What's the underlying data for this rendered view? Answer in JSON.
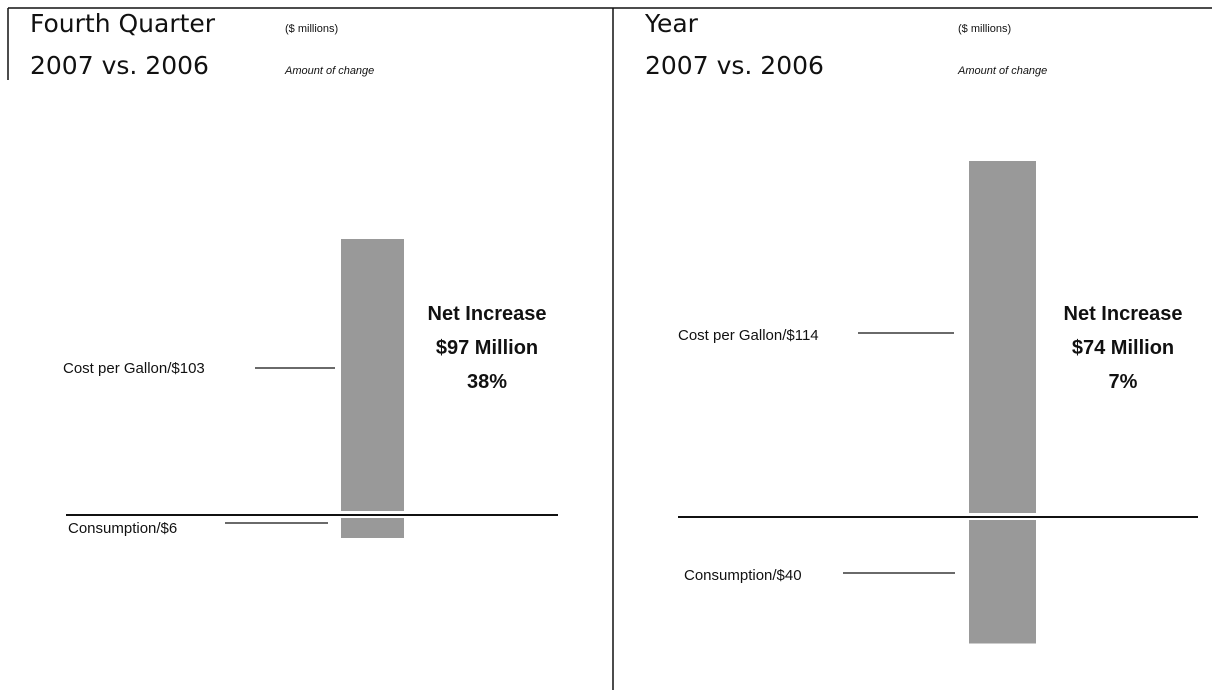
{
  "chart_data": [
    {
      "type": "bar",
      "title_line1": "Fourth Quarter",
      "title_line2": "2007 vs. 2006",
      "units": "($ millions)",
      "subtitle": "Amount of change",
      "categories": [
        "Cost per Gallon",
        "Consumption"
      ],
      "labels": [
        "Cost per Gallon/$103",
        "Consumption/$6"
      ],
      "values": [
        103,
        -6
      ],
      "net": {
        "line1": "Net Increase",
        "line2": "$97 Million",
        "line3": "38%",
        "value": 97,
        "percent": 38
      },
      "color": "#999999"
    },
    {
      "type": "bar",
      "title_line1": "Year",
      "title_line2": "2007 vs. 2006",
      "units": "($ millions)",
      "subtitle": "Amount of change",
      "categories": [
        "Cost per Gallon",
        "Consumption"
      ],
      "labels": [
        "Cost per Gallon/$114",
        "Consumption/$40"
      ],
      "values": [
        114,
        -40
      ],
      "net": {
        "line1": "Net Increase",
        "line2": "$74 Million",
        "line3": "7%",
        "value": 74,
        "percent": 7
      },
      "color": "#999999"
    }
  ]
}
